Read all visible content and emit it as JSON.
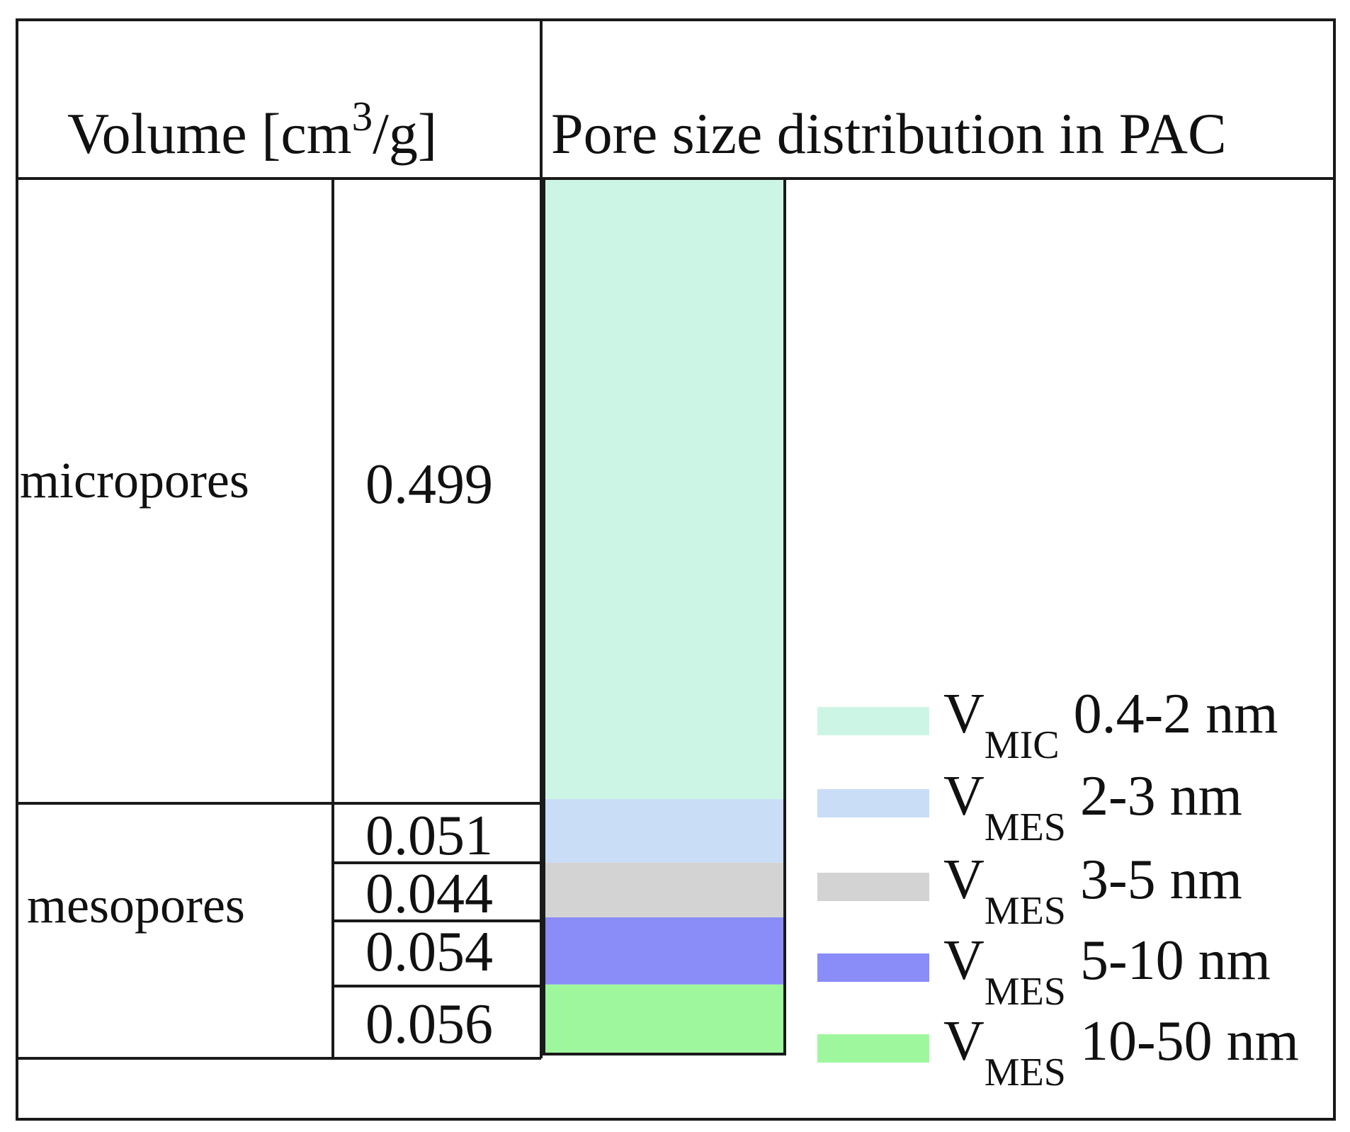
{
  "chart_data": {
    "type": "bar",
    "stacked": true,
    "header": {
      "volume_prefix": "Volume [cm",
      "volume_sup": "3",
      "volume_suffix": "/g]",
      "title": "Pore size distribution in PAC"
    },
    "groups": [
      {
        "label": "micropores",
        "values": [
          "0.499"
        ]
      },
      {
        "label": "mesopores",
        "values": [
          "0.051",
          "0.044",
          "0.054",
          "0.056"
        ]
      }
    ],
    "series": [
      {
        "symbol": "V",
        "subscript": "MIC",
        "range": "0.4-2 nm",
        "value": 0.499,
        "color": "#cdf5e6"
      },
      {
        "symbol": "V",
        "subscript": "MES",
        "range": "2-3 nm",
        "value": 0.051,
        "color": "#c9ddf7"
      },
      {
        "symbol": "V",
        "subscript": "MES",
        "range": "3-5 nm",
        "value": 0.044,
        "color": "#d3d3d3"
      },
      {
        "symbol": "V",
        "subscript": "MES",
        "range": "5-10 nm",
        "value": 0.054,
        "color": "#8a8cf7"
      },
      {
        "symbol": "V",
        "subscript": "MES",
        "range": "10-50 nm",
        "value": 0.056,
        "color": "#9ff79d"
      }
    ],
    "legend_position": "bottom-right",
    "grid": false
  }
}
